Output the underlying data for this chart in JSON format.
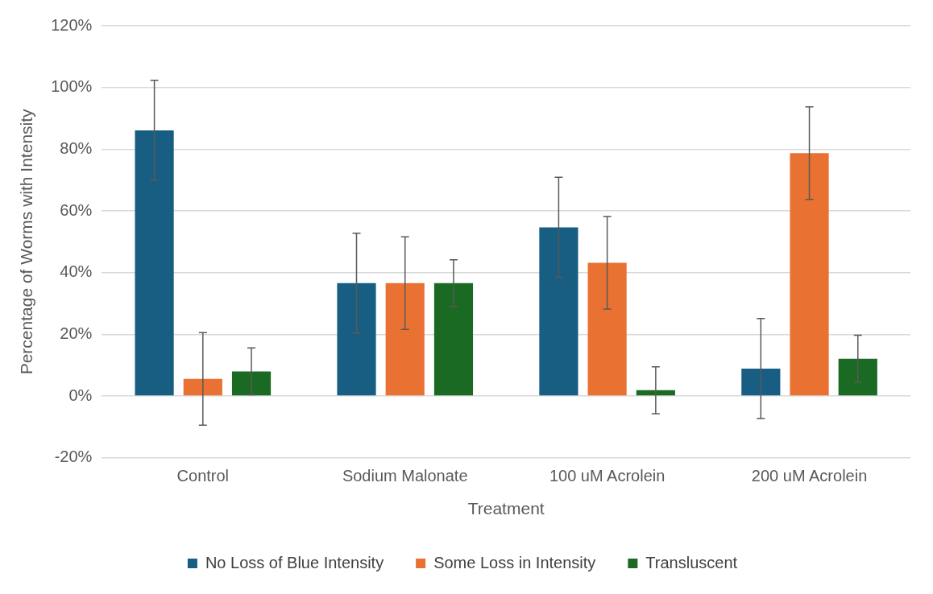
{
  "chart_data": {
    "type": "bar",
    "xlabel": "Treatment",
    "ylabel": "Percentage of Worms with Intensity",
    "categories": [
      "Control",
      "Sodium Malonate",
      "100 uM Acrolein",
      "200 uM Acrolein"
    ],
    "series": [
      {
        "name": "No Loss of Blue Intensity",
        "color": "#175e82",
        "values": [
          86.1,
          36.6,
          54.7,
          8.9
        ],
        "errors": [
          16.2,
          16.2,
          16.2,
          16.2
        ]
      },
      {
        "name": "Some Loss in Intensity",
        "color": "#e97132",
        "values": [
          5.6,
          36.6,
          43.2,
          78.7
        ],
        "errors": [
          15,
          15,
          15,
          15
        ]
      },
      {
        "name": "Transluscent",
        "color": "#1b6a23",
        "values": [
          8.0,
          36.6,
          1.9,
          12.1
        ],
        "errors": [
          7.6,
          7.6,
          7.6,
          7.6
        ]
      }
    ],
    "ylim": [
      -20,
      120
    ],
    "yticks": [
      {
        "value": -20,
        "label": "-20%"
      },
      {
        "value": 0,
        "label": "0%"
      },
      {
        "value": 20,
        "label": "20%"
      },
      {
        "value": 40,
        "label": "40%"
      },
      {
        "value": 60,
        "label": "60%"
      },
      {
        "value": 80,
        "label": "80%"
      },
      {
        "value": 100,
        "label": "100%"
      },
      {
        "value": 120,
        "label": "120%"
      }
    ],
    "grid": "y",
    "legend": "bottom"
  }
}
